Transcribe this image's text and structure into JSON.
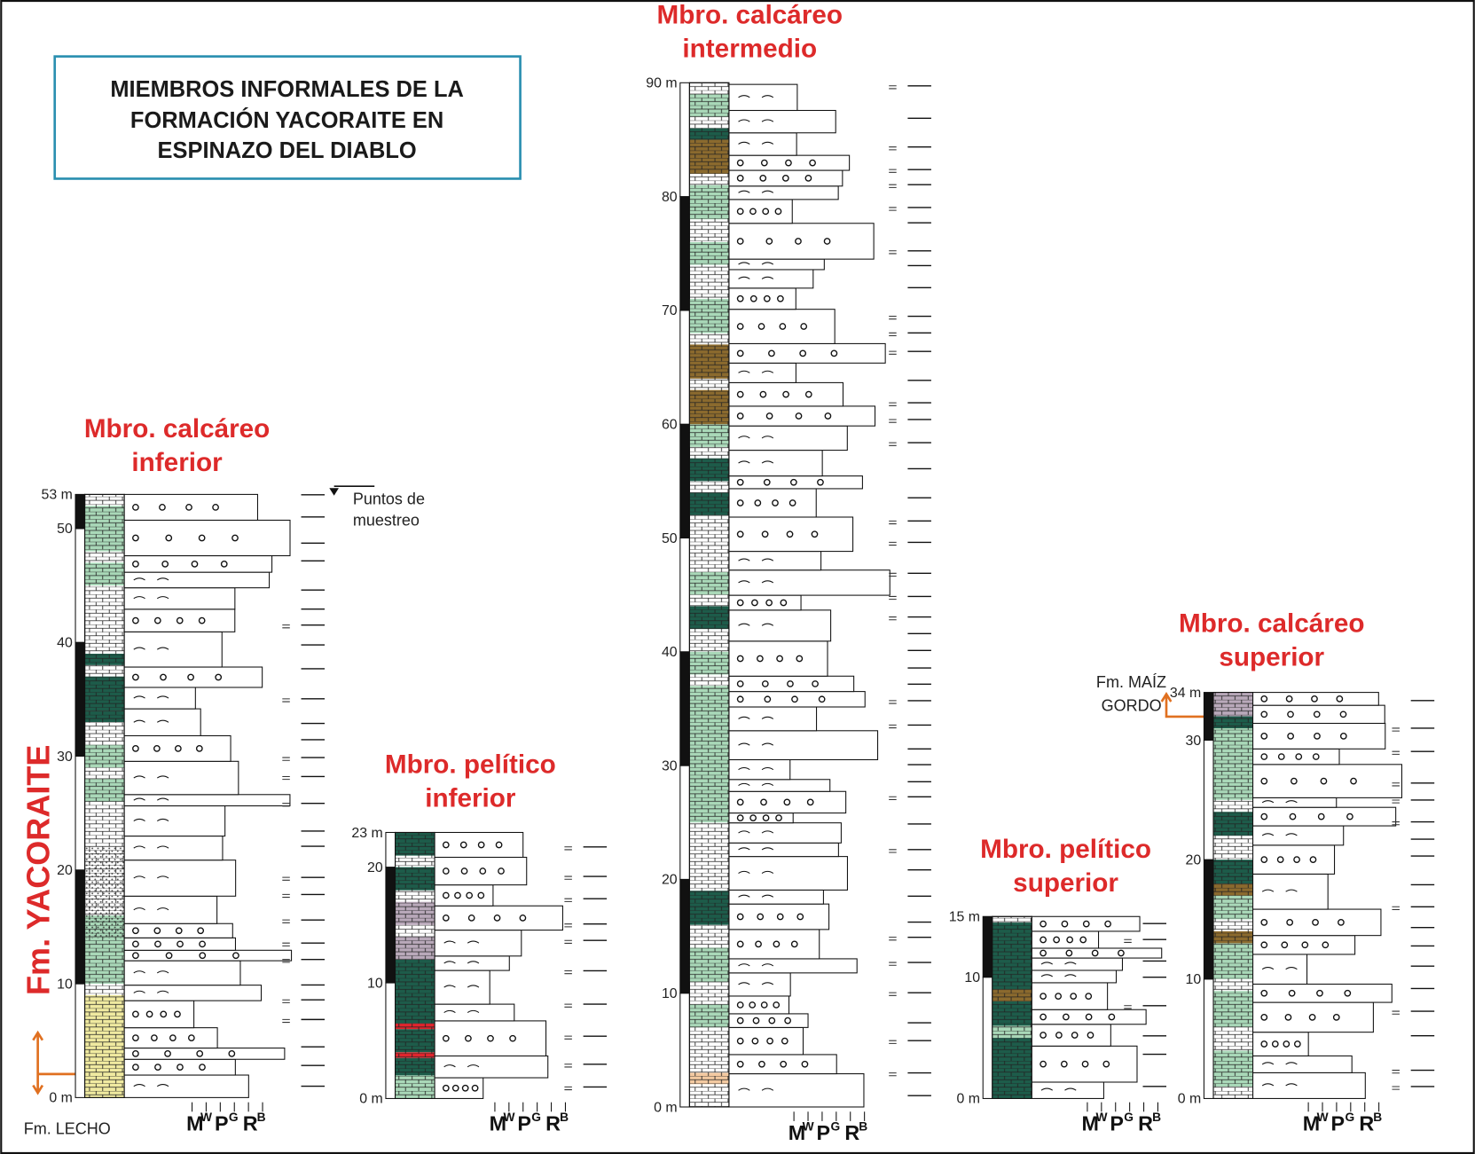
{
  "title_box": {
    "lines": [
      "MIEMBROS INFORMALES DE LA",
      "FORMACIÓN YACORAITE EN",
      "ESPINAZO DEL DIABLO"
    ]
  },
  "legend": {
    "label_lines": [
      "Puntos de",
      "muestreo"
    ]
  },
  "formation_labels": {
    "main": "Fm. YACORAITE",
    "base": "Fm. LECHO",
    "top": [
      "Fm. MAÍZ",
      "GORDO"
    ]
  },
  "grain_scale": [
    "M",
    "W",
    "P",
    "G",
    "R",
    "B"
  ],
  "columns": [
    {
      "title": [
        "Mbro. calcáreo",
        "inferior"
      ],
      "ticks": [
        "0 m",
        "10",
        "20",
        "30",
        "40",
        "50",
        "53 m"
      ]
    },
    {
      "title": [
        "Mbro. pelítico",
        "inferior"
      ],
      "ticks": [
        "0 m",
        "10",
        "20",
        "23 m"
      ]
    },
    {
      "title": [
        "Mbro. calcáreo",
        "intermedio"
      ],
      "ticks": [
        "0 m",
        "10",
        "20",
        "30",
        "40",
        "50",
        "60",
        "70",
        "80",
        "90 m"
      ]
    },
    {
      "title": [
        "Mbro. pelítico",
        "superior"
      ],
      "ticks": [
        "0 m",
        "10",
        "15 m"
      ]
    },
    {
      "title": [
        "Mbro. calcáreo",
        "superior"
      ],
      "ticks": [
        "0 m",
        "10",
        "20",
        "30",
        "34 m"
      ]
    }
  ]
}
